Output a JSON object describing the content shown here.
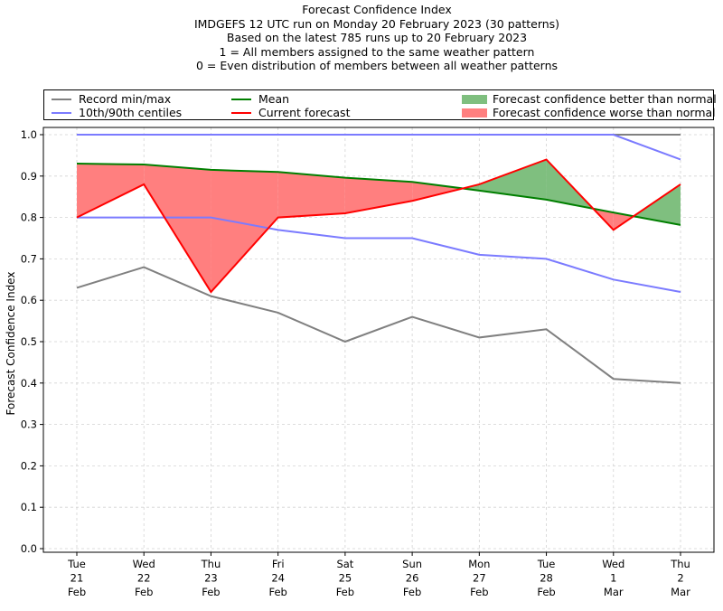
{
  "header": {
    "title_lines": [
      "Forecast Confidence Index",
      "IMDGEFS 12 UTC run on Monday 20 February 2023 (30 patterns)",
      "Based on the latest 785 runs up to 20 February 2023",
      "1 = All members assigned to the same weather pattern",
      "0 = Even distribution of members between all weather patterns"
    ]
  },
  "legend": {
    "placement": "top, above plot",
    "items": [
      {
        "label": "Record min/max",
        "kind": "line",
        "color": "#808080"
      },
      {
        "label": "10th/90th centiles",
        "kind": "line",
        "color": "#7b7bff"
      },
      {
        "label": "Mean",
        "kind": "line",
        "color": "#007f00"
      },
      {
        "label": "Current forecast",
        "kind": "line",
        "color": "#ff0000"
      },
      {
        "label": "Forecast confidence better than normal",
        "kind": "patch",
        "color": "#7fbf7f"
      },
      {
        "label": "Forecast confidence worse than normal",
        "kind": "patch",
        "color": "#ff7f7f"
      }
    ]
  },
  "chart_data": {
    "type": "line",
    "title": "Forecast Confidence Index",
    "xlabel": "",
    "ylabel": "Forecast Confidence Index",
    "ylim": [
      0.0,
      1.0
    ],
    "yticks": [
      "0.0",
      "0.1",
      "0.2",
      "0.3",
      "0.4",
      "0.5",
      "0.6",
      "0.7",
      "0.8",
      "0.9",
      "1.0"
    ],
    "grid": true,
    "categories": [
      [
        "Tue",
        "21",
        "Feb"
      ],
      [
        "Wed",
        "22",
        "Feb"
      ],
      [
        "Thu",
        "23",
        "Feb"
      ],
      [
        "Fri",
        "24",
        "Feb"
      ],
      [
        "Sat",
        "25",
        "Feb"
      ],
      [
        "Sun",
        "26",
        "Feb"
      ],
      [
        "Mon",
        "27",
        "Feb"
      ],
      [
        "Tue",
        "28",
        "Feb"
      ],
      [
        "Wed",
        "1",
        "Mar"
      ],
      [
        "Thu",
        "2",
        "Mar"
      ]
    ],
    "series": [
      {
        "name": "Record min",
        "color": "#808080",
        "values": [
          0.63,
          0.68,
          0.61,
          0.57,
          0.5,
          0.56,
          0.51,
          0.53,
          0.41,
          0.4
        ]
      },
      {
        "name": "Record max",
        "color": "#808080",
        "values": [
          1.0,
          1.0,
          1.0,
          1.0,
          1.0,
          1.0,
          1.0,
          1.0,
          1.0,
          1.0
        ]
      },
      {
        "name": "10th centile",
        "color": "#7b7bff",
        "values": [
          0.8,
          0.8,
          0.8,
          0.77,
          0.75,
          0.75,
          0.71,
          0.7,
          0.65,
          0.62
        ]
      },
      {
        "name": "90th centile",
        "color": "#7b7bff",
        "values": [
          1.0,
          1.0,
          1.0,
          1.0,
          1.0,
          1.0,
          1.0,
          1.0,
          1.0,
          0.94
        ]
      },
      {
        "name": "Mean",
        "color": "#007f00",
        "values": [
          0.93,
          0.928,
          0.915,
          0.91,
          0.896,
          0.886,
          0.865,
          0.843,
          0.812,
          0.782
        ]
      },
      {
        "name": "Current forecast",
        "color": "#ff0000",
        "values": [
          0.8,
          0.88,
          0.62,
          0.8,
          0.81,
          0.84,
          0.88,
          0.94,
          0.77,
          0.88
        ]
      }
    ],
    "fill_between": {
      "better_color": "#7fbf7f",
      "worse_color": "#ff7f7f",
      "description": "Area between Current forecast and Mean; green where forecast above mean, red where below"
    }
  }
}
